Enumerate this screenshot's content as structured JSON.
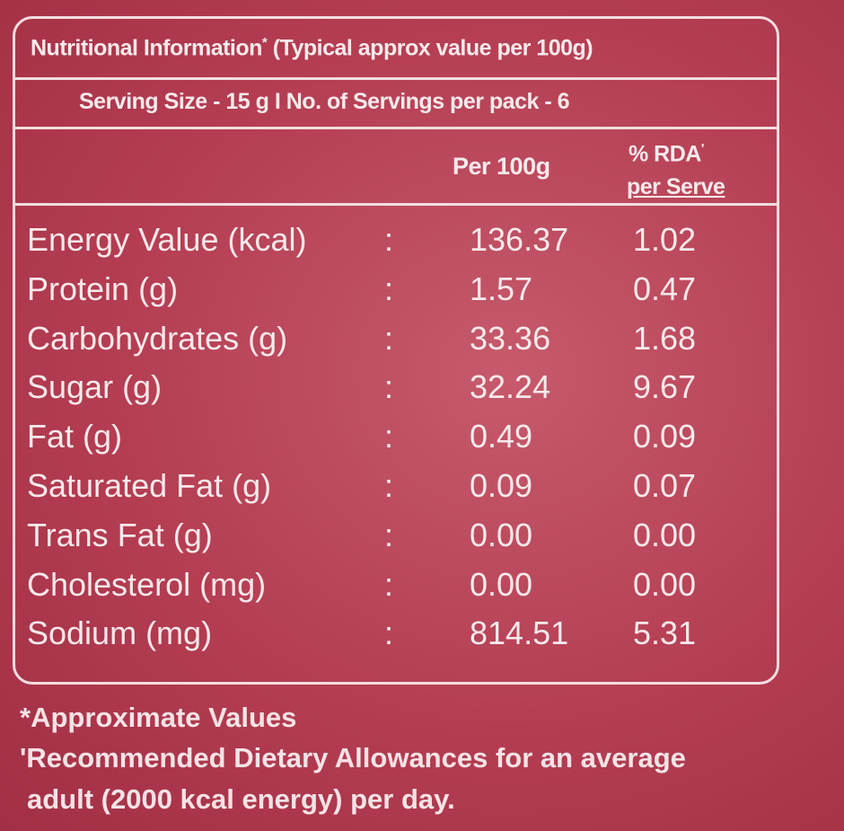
{
  "header": {
    "title": "Nutritional Information",
    "title_mark": "*",
    "title_note": "(Typical approx value per 100g)",
    "serving": "Serving Size - 15 g I No. of Servings per pack - 6"
  },
  "table": {
    "columns": {
      "per_100g": "Per 100g",
      "rda": "% RDA",
      "rda_mark": "'",
      "rda_sub": "per Serve"
    },
    "separator": ":",
    "rows": [
      [
        "Energy Value (kcal)",
        "136.37",
        "1.02"
      ],
      [
        "Protein (g)",
        "1.57",
        "0.47"
      ],
      [
        "Carbohydrates (g)",
        "33.36",
        "1.68"
      ],
      [
        "Sugar (g)",
        "32.24",
        "9.67"
      ],
      [
        "Fat (g)",
        "0.49",
        "0.09"
      ],
      [
        "Saturated Fat (g)",
        "0.09",
        "0.07"
      ],
      [
        "Trans Fat (g)",
        "0.00",
        "0.00"
      ],
      [
        "Cholesterol (mg)",
        "0.00",
        "0.00"
      ],
      [
        "Sodium (mg)",
        "814.51",
        "5.31"
      ]
    ]
  },
  "footnotes": [
    "*Approximate Values",
    "'Recommended Dietary Allowances for an average",
    "adult (2000 kcal energy) per day."
  ]
}
